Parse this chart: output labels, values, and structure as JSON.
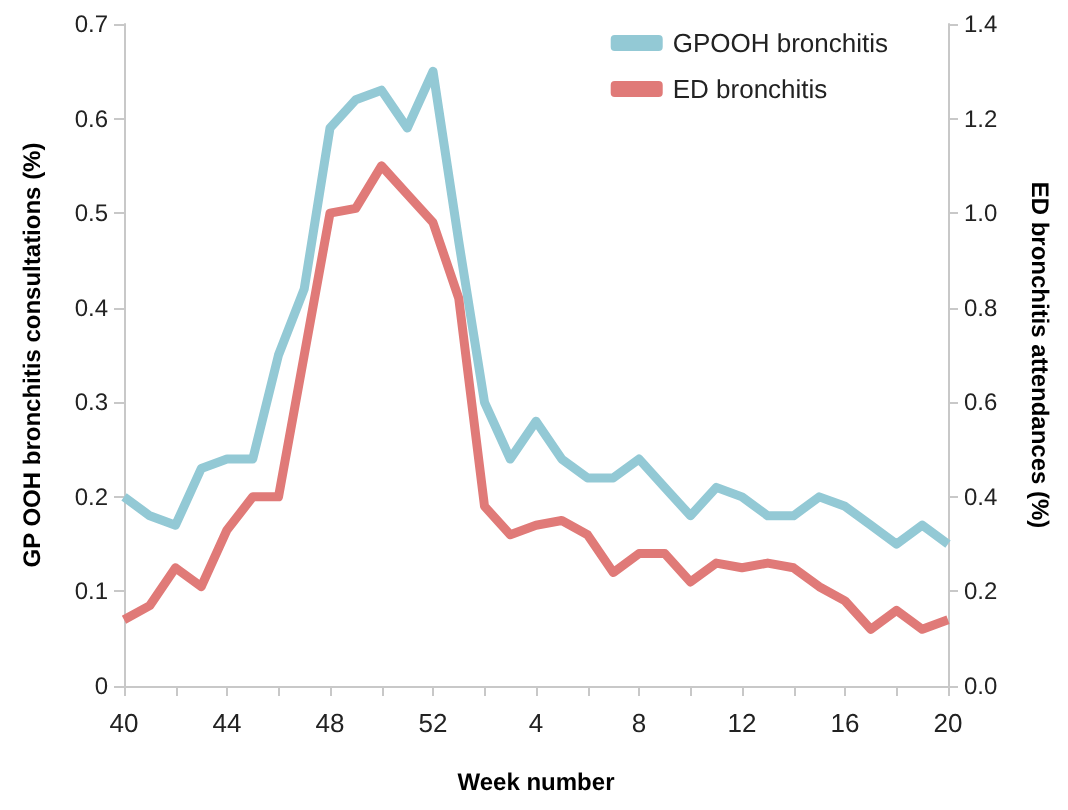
{
  "chart_data": {
    "type": "line",
    "xlabel": "Week number",
    "ylabel": "GP OOH bronchitis consultations (%)",
    "y2label": "ED bronchitis attendances (%)",
    "categories": [
      "40",
      null,
      null,
      null,
      "44",
      null,
      null,
      null,
      "48",
      null,
      null,
      null,
      "52",
      null,
      null,
      null,
      "4",
      null,
      null,
      null,
      "8",
      null,
      null,
      null,
      "12",
      null,
      null,
      null,
      "16",
      null,
      null,
      null,
      "20"
    ],
    "series": [
      {
        "name": "GPOOH bronchitis",
        "color": "#93c9d5",
        "values": [
          0.2,
          0.18,
          0.17,
          0.23,
          0.24,
          0.24,
          0.35,
          0.42,
          0.59,
          0.62,
          0.63,
          0.59,
          0.65,
          0.47,
          0.3,
          0.24,
          0.28,
          0.24,
          0.22,
          0.22,
          0.24,
          0.21,
          0.18,
          0.21,
          0.2,
          0.18,
          0.18,
          0.2,
          0.19,
          0.17,
          0.15,
          0.17,
          0.15
        ]
      },
      {
        "name": "ED bronchitis",
        "color": "#e07a78",
        "axis": "y2",
        "values": [
          0.14,
          0.17,
          0.25,
          0.21,
          0.33,
          0.4,
          0.4,
          0.7,
          1.0,
          1.01,
          1.1,
          1.04,
          0.98,
          0.82,
          0.38,
          0.32,
          0.34,
          0.35,
          0.32,
          0.24,
          0.28,
          0.28,
          0.22,
          0.26,
          0.25,
          0.26,
          0.25,
          0.21,
          0.18,
          0.12,
          0.16,
          0.12,
          0.14
        ]
      }
    ],
    "ylim": [
      0,
      0.7
    ],
    "yticks": [
      0,
      0.1,
      0.2,
      0.3,
      0.4,
      0.5,
      0.6,
      0.7
    ],
    "y2lim": [
      0,
      1.4
    ],
    "y2ticks": [
      {
        "value": 0,
        "label": "0.0"
      },
      {
        "value": 0.2,
        "label": "0.2"
      },
      {
        "value": 0.4,
        "label": "0.4"
      },
      {
        "value": 0.6,
        "label": "0.6"
      },
      {
        "value": 0.8,
        "label": "0.8"
      },
      {
        "value": 1,
        "label": "1.0"
      },
      {
        "value": 1.2,
        "label": "1.2"
      },
      {
        "value": 1.4,
        "label": "1.4"
      }
    ],
    "grid": false,
    "legend": "top right",
    "marker": "none",
    "line_style": "solid"
  }
}
